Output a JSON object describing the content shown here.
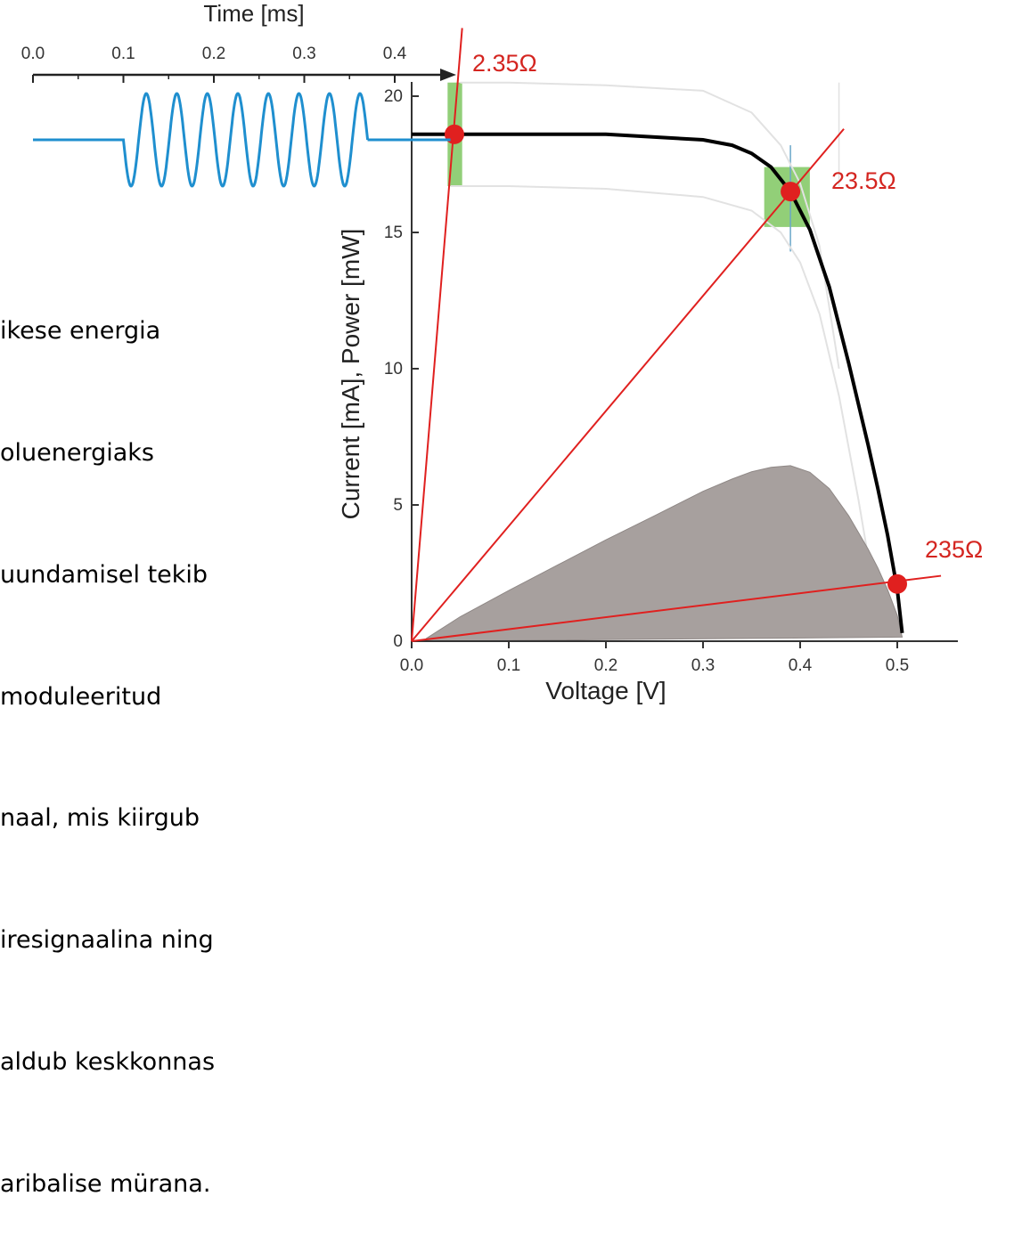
{
  "caption_lines": [
    "ikese energia",
    "oluenergiaks",
    "uundamisel tekib",
    "moduleeritud",
    "naal, mis kiirgub",
    "iresignaalina ning",
    "aldub keskkonnas",
    "aribalise mürana."
  ],
  "chart_data": [
    {
      "type": "line",
      "title": "",
      "xlabel": "Voltage [V]",
      "ylabel": "Current [mA], Power [mW]",
      "xlim": [
        0.0,
        0.52
      ],
      "ylim": [
        0,
        21
      ],
      "x_ticks": [
        "0.0",
        "0.1",
        "0.2",
        "0.3",
        "0.4",
        "0.5"
      ],
      "y_ticks": [
        "0",
        "5",
        "10",
        "15",
        "20"
      ],
      "grid": false,
      "series": [
        {
          "role": "current",
          "color": "#000000",
          "x": [
            0.0,
            0.05,
            0.1,
            0.15,
            0.2,
            0.25,
            0.3,
            0.33,
            0.35,
            0.37,
            0.39,
            0.41,
            0.43,
            0.45,
            0.47,
            0.48,
            0.49,
            0.5,
            0.505
          ],
          "y": [
            18.6,
            18.6,
            18.6,
            18.6,
            18.6,
            18.5,
            18.4,
            18.2,
            17.9,
            17.4,
            16.5,
            15.1,
            13.0,
            10.2,
            7.2,
            5.6,
            3.9,
            1.9,
            0.3
          ]
        },
        {
          "role": "power",
          "fill": "#a7a09e",
          "x": [
            0.015,
            0.05,
            0.1,
            0.15,
            0.2,
            0.25,
            0.3,
            0.33,
            0.35,
            0.37,
            0.39,
            0.41,
            0.43,
            0.45,
            0.47,
            0.48,
            0.49,
            0.5,
            0.505
          ],
          "y": [
            0.1,
            0.9,
            1.86,
            2.79,
            3.72,
            4.6,
            5.5,
            5.95,
            6.22,
            6.38,
            6.44,
            6.2,
            5.6,
            4.6,
            3.38,
            2.69,
            1.9,
            0.95,
            0.15
          ]
        },
        {
          "role": "current-upper-envelope",
          "color": "#e2e2e2",
          "x": [
            0.05,
            0.1,
            0.2,
            0.3,
            0.35,
            0.38,
            0.4,
            0.42,
            0.44
          ],
          "y": [
            20.5,
            20.5,
            20.4,
            20.2,
            19.4,
            18.2,
            16.8,
            14.5,
            10.0
          ]
        },
        {
          "role": "current-lower-envelope",
          "color": "#e2e2e2",
          "x": [
            0.04,
            0.1,
            0.2,
            0.3,
            0.35,
            0.38,
            0.4,
            0.42,
            0.44,
            0.46,
            0.48
          ],
          "y": [
            16.7,
            16.7,
            16.6,
            16.3,
            15.8,
            15.0,
            13.9,
            12.0,
            9.0,
            5.2,
            1.0
          ]
        }
      ],
      "load_lines": [
        {
          "label": "2.35Ω",
          "operating_point": [
            0.044,
            18.6
          ],
          "end": [
            0.052,
            22.5
          ]
        },
        {
          "label": "23.5Ω",
          "operating_point": [
            0.39,
            16.5
          ],
          "end": [
            0.445,
            18.8
          ]
        },
        {
          "label": "235Ω",
          "operating_point": [
            0.5,
            2.1
          ],
          "end": [
            0.545,
            2.4
          ]
        }
      ],
      "operating_point_color": "#e0201f",
      "load_line_color": "#e0201f",
      "modulation_band_color": "#6dbf4b"
    },
    {
      "type": "line",
      "title": "",
      "xlabel": "Time [ms]",
      "xlim": [
        0.0,
        0.4
      ],
      "x_ticks": [
        "0.0",
        "0.1",
        "0.2",
        "0.3",
        "0.4"
      ],
      "series": [
        {
          "role": "modulated-signal",
          "color": "#1f8fcf",
          "x": [
            0.0,
            0.1,
            0.1,
            0.37,
            0.37,
            0.42
          ],
          "y": [
            "baseline",
            "baseline",
            "oscillation-start",
            "oscillation-end",
            "baseline",
            "baseline"
          ],
          "cycles": 8
        }
      ]
    }
  ]
}
